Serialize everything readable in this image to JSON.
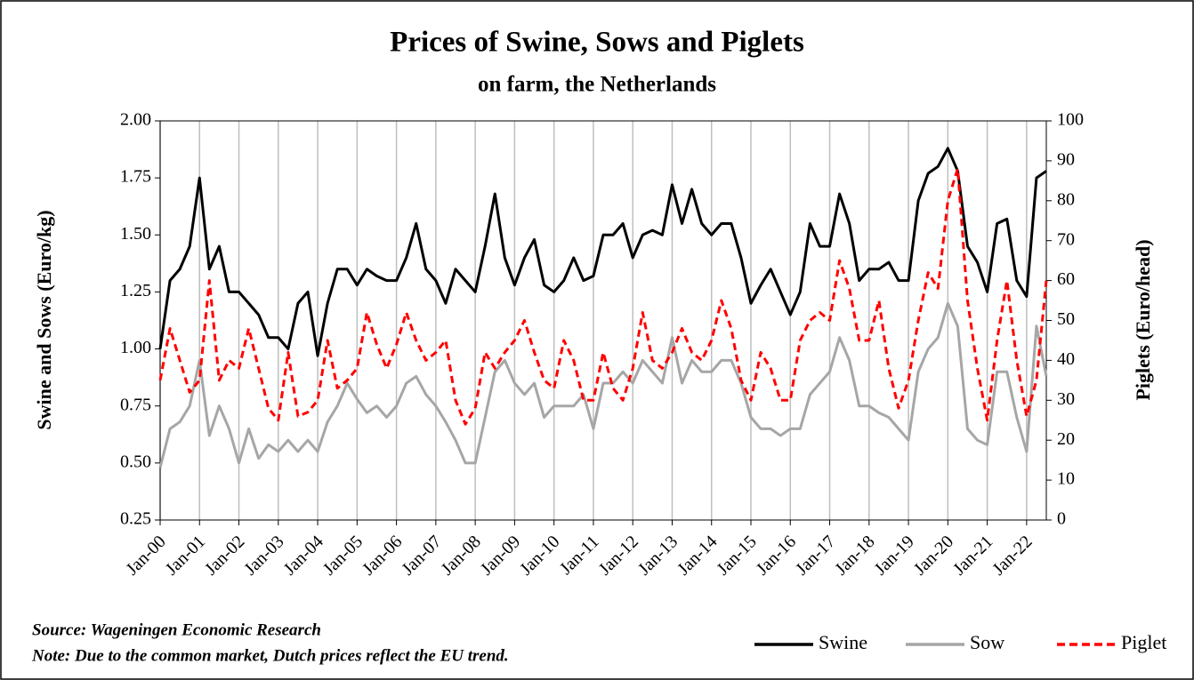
{
  "chart_data": {
    "type": "line",
    "title": "Prices of Swine, Sows and Piglets",
    "subtitle": "on farm, the Netherlands",
    "y_label": "Swine and Sows (Euro/kg)",
    "y2_label": "Piglets (Euro/head)",
    "source": "Source: Wageningen Economic Research",
    "note": "Note: Due to the common market, Dutch prices reflect the EU trend.",
    "categories": [
      "Jan-00",
      null,
      null,
      null,
      "Jan-01",
      null,
      null,
      null,
      "Jan-02",
      null,
      null,
      null,
      "Jan-03",
      null,
      null,
      null,
      "Jan-04",
      null,
      null,
      null,
      "Jan-05",
      null,
      null,
      null,
      "Jan-06",
      null,
      null,
      null,
      "Jan-07",
      null,
      null,
      null,
      "Jan-08",
      null,
      null,
      null,
      "Jan-09",
      null,
      null,
      null,
      "Jan-10",
      null,
      null,
      null,
      "Jan-11",
      null,
      null,
      null,
      "Jan-12",
      null,
      null,
      null,
      "Jan-13",
      null,
      null,
      null,
      "Jan-14",
      null,
      null,
      null,
      "Jan-15",
      null,
      null,
      null,
      "Jan-16",
      null,
      null,
      null,
      "Jan-17",
      null,
      null,
      null,
      "Jan-18",
      null,
      null,
      null,
      "Jan-19",
      null,
      null,
      null,
      "Jan-20",
      null,
      null,
      null,
      "Jan-21",
      null,
      null,
      null,
      "Jan-22",
      null,
      null
    ],
    "series": [
      {
        "name": "Swine",
        "color": "#000000",
        "axis": "y",
        "dashed": false,
        "values": [
          1.0,
          1.3,
          1.35,
          1.45,
          1.75,
          1.35,
          1.45,
          1.25,
          1.25,
          1.2,
          1.15,
          1.05,
          1.05,
          1.0,
          1.2,
          1.25,
          0.97,
          1.2,
          1.35,
          1.35,
          1.28,
          1.35,
          1.32,
          1.3,
          1.3,
          1.4,
          1.55,
          1.35,
          1.3,
          1.2,
          1.35,
          1.3,
          1.25,
          1.45,
          1.68,
          1.4,
          1.28,
          1.4,
          1.48,
          1.28,
          1.25,
          1.3,
          1.4,
          1.3,
          1.32,
          1.5,
          1.5,
          1.55,
          1.4,
          1.5,
          1.52,
          1.5,
          1.72,
          1.55,
          1.7,
          1.55,
          1.5,
          1.55,
          1.55,
          1.4,
          1.2,
          1.28,
          1.35,
          1.25,
          1.15,
          1.25,
          1.55,
          1.45,
          1.45,
          1.68,
          1.55,
          1.3,
          1.35,
          1.35,
          1.38,
          1.3,
          1.3,
          1.65,
          1.77,
          1.8,
          1.88,
          1.78,
          1.45,
          1.38,
          1.25,
          1.55,
          1.57,
          1.3,
          1.23,
          1.75,
          1.78
        ]
      },
      {
        "name": "Sow",
        "color": "#a6a6a6",
        "axis": "y",
        "dashed": false,
        "values": [
          0.48,
          0.65,
          0.68,
          0.75,
          0.95,
          0.62,
          0.75,
          0.65,
          0.5,
          0.65,
          0.52,
          0.58,
          0.55,
          0.6,
          0.55,
          0.6,
          0.55,
          0.68,
          0.75,
          0.85,
          0.78,
          0.72,
          0.75,
          0.7,
          0.75,
          0.85,
          0.88,
          0.8,
          0.75,
          0.68,
          0.6,
          0.5,
          0.5,
          0.7,
          0.9,
          0.95,
          0.85,
          0.8,
          0.85,
          0.7,
          0.75,
          0.75,
          0.75,
          0.8,
          0.65,
          0.85,
          0.85,
          0.9,
          0.85,
          0.95,
          0.9,
          0.85,
          1.05,
          0.85,
          0.95,
          0.9,
          0.9,
          0.95,
          0.95,
          0.85,
          0.7,
          0.65,
          0.65,
          0.62,
          0.65,
          0.65,
          0.8,
          0.85,
          0.9,
          1.05,
          0.95,
          0.75,
          0.75,
          0.72,
          0.7,
          0.65,
          0.6,
          0.9,
          1.0,
          1.05,
          1.2,
          1.1,
          0.65,
          0.6,
          0.58,
          0.9,
          0.9,
          0.7,
          0.55,
          1.1,
          0.88
        ]
      },
      {
        "name": "Piglet",
        "color": "#ff0000",
        "axis": "y2",
        "dashed": true,
        "values": [
          35,
          48,
          40,
          32,
          35,
          60,
          35,
          40,
          38,
          48,
          38,
          28,
          25,
          42,
          26,
          27,
          30,
          45,
          33,
          35,
          38,
          52,
          44,
          38,
          44,
          52,
          45,
          40,
          42,
          45,
          30,
          24,
          28,
          42,
          38,
          42,
          45,
          50,
          42,
          35,
          33,
          45,
          40,
          30,
          30,
          42,
          33,
          30,
          38,
          52,
          40,
          38,
          42,
          48,
          42,
          40,
          45,
          55,
          48,
          35,
          30,
          42,
          38,
          30,
          30,
          45,
          50,
          52,
          50,
          65,
          58,
          45,
          45,
          55,
          38,
          28,
          35,
          50,
          62,
          58,
          80,
          88,
          55,
          38,
          25,
          45,
          60,
          40,
          26,
          35,
          60
        ]
      }
    ],
    "ylim": [
      0.25,
      2.0
    ],
    "yticks": [
      {
        "value": 0.25,
        "label": "0.25"
      },
      {
        "value": 0.5,
        "label": "0.50"
      },
      {
        "value": 0.75,
        "label": "0.75"
      },
      {
        "value": 1,
        "label": "1.00"
      },
      {
        "value": 1.25,
        "label": "1.25"
      },
      {
        "value": 1.5,
        "label": "1.50"
      },
      {
        "value": 1.75,
        "label": "1.75"
      },
      {
        "value": 2,
        "label": "2.00"
      }
    ],
    "y2lim": [
      0,
      100
    ],
    "y2ticks": [
      0,
      10,
      20,
      30,
      40,
      50,
      60,
      70,
      80,
      90,
      100
    ],
    "grid": "x",
    "legend": "bottom-right"
  }
}
